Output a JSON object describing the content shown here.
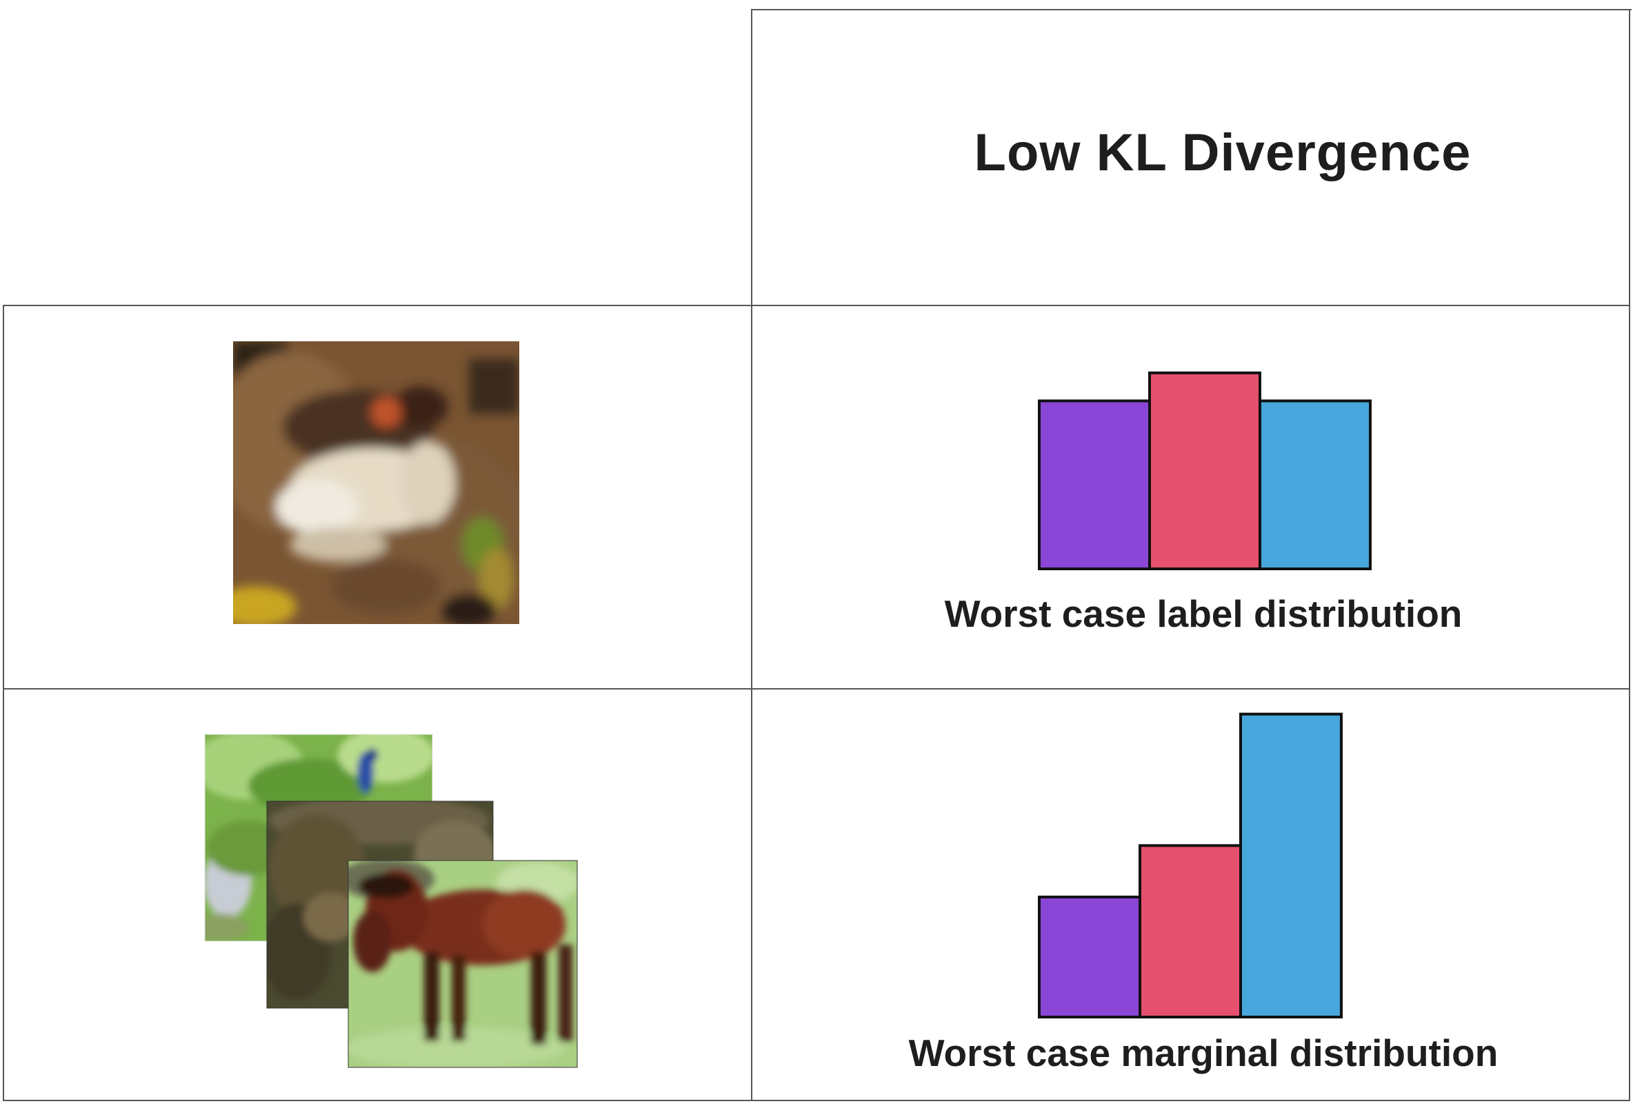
{
  "header": {
    "title": "Low KL Divergence"
  },
  "rows": [
    {
      "image": "frog-image",
      "caption": "Worst case label distribution"
    },
    {
      "images": [
        "bird-image",
        "deer-image",
        "horse-image"
      ],
      "caption": "Worst case marginal distribution"
    }
  ],
  "colors": {
    "purple": "#8a46d6",
    "pink": "#e5506f",
    "blue": "#47a6dc",
    "stroke": "#111111"
  },
  "chart_data": [
    {
      "type": "bar",
      "title": "",
      "series": [
        {
          "values": [
            0.3,
            0.35,
            0.3
          ],
          "colors": [
            "#8a46d6",
            "#e5506f",
            "#47a6dc"
          ]
        }
      ],
      "ylim": [
        0,
        1
      ]
    },
    {
      "type": "bar",
      "title": "",
      "series": [
        {
          "values": [
            0.21,
            0.3,
            0.53
          ],
          "colors": [
            "#8a46d6",
            "#e5506f",
            "#47a6dc"
          ]
        }
      ],
      "ylim": [
        0,
        1
      ]
    }
  ]
}
